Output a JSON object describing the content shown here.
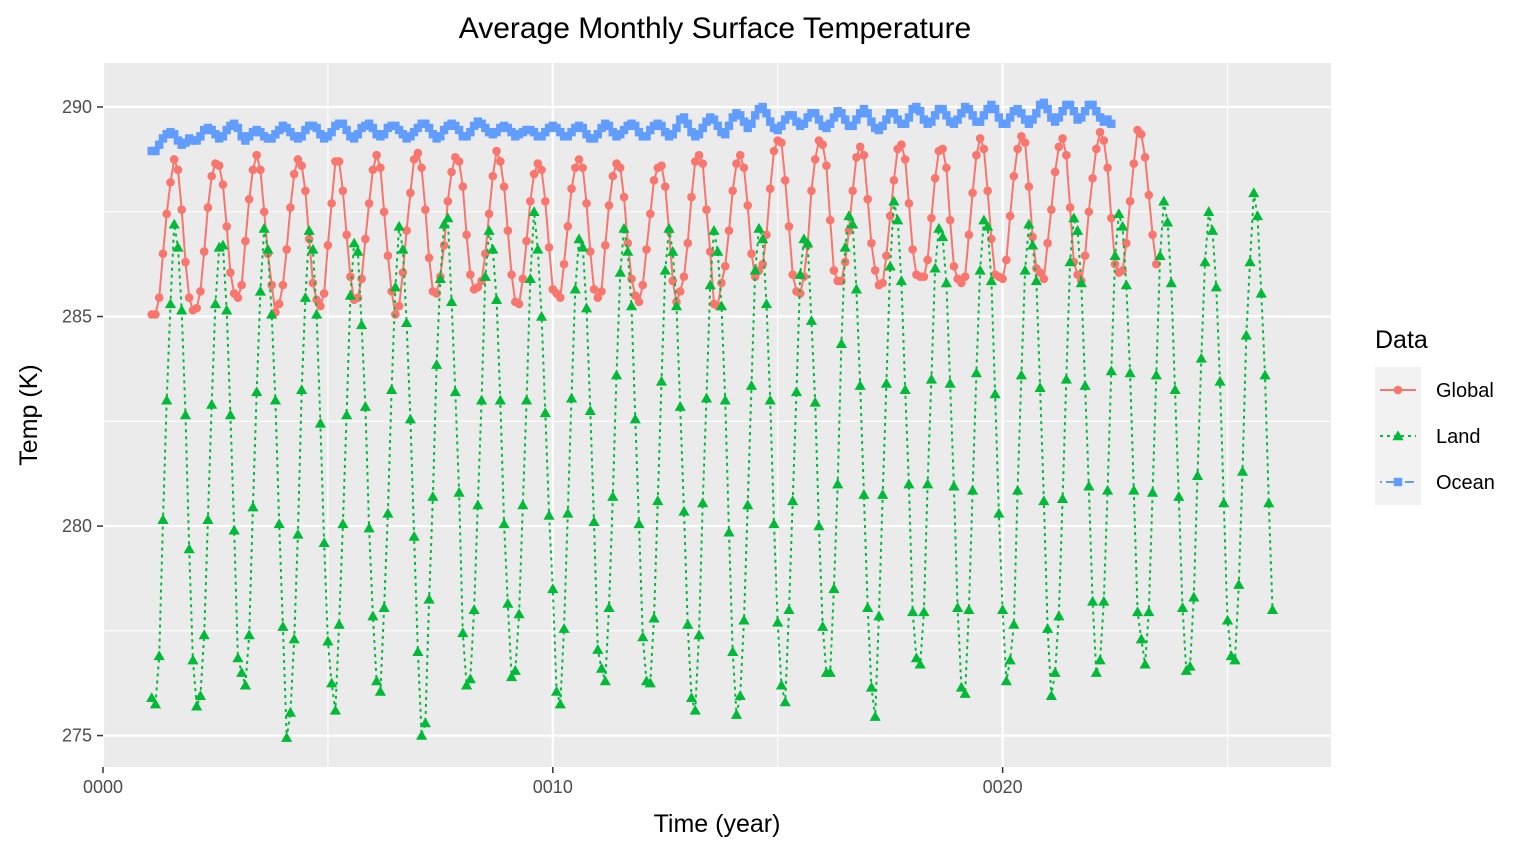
{
  "chart_data": {
    "type": "line",
    "title": "Average Monthly Surface Temperature",
    "xlabel": "Time (year)",
    "ylabel": "Temp (K)",
    "xlim": [
      0,
      27.3
    ],
    "ylim": [
      274.25,
      291.05
    ],
    "x_ticks": [
      {
        "value": 0,
        "label": "0000"
      },
      {
        "value": 10,
        "label": "0010"
      },
      {
        "value": 20,
        "label": "0020"
      }
    ],
    "y_ticks": [
      {
        "value": 275,
        "label": "275"
      },
      {
        "value": 280,
        "label": "280"
      },
      {
        "value": 285,
        "label": "285"
      },
      {
        "value": 290,
        "label": "290"
      }
    ],
    "grid": true,
    "legend": {
      "title": "Data",
      "placement": "right"
    },
    "months_per_year": 12,
    "x_start": 1.083,
    "series": [
      {
        "name": "Global",
        "color": "#f8766d",
        "marker": "circle",
        "line": "solid",
        "values": [
          285.05,
          285.05,
          285.45,
          286.5,
          287.45,
          288.2,
          288.75,
          288.5,
          287.55,
          286.3,
          285.45,
          285.15,
          285.2,
          285.6,
          286.55,
          287.6,
          288.35,
          288.65,
          288.6,
          288.15,
          287.15,
          286.05,
          285.55,
          285.45,
          285.75,
          286.8,
          287.8,
          288.5,
          288.85,
          288.5,
          287.5,
          286.5,
          285.75,
          285.1,
          285.3,
          285.75,
          286.6,
          287.6,
          288.4,
          288.75,
          288.6,
          288.0,
          286.85,
          285.8,
          285.4,
          285.25,
          285.55,
          286.7,
          287.7,
          288.7,
          288.7,
          288.0,
          286.95,
          285.95,
          285.4,
          285.45,
          285.9,
          286.85,
          287.7,
          288.5,
          288.85,
          288.55,
          287.5,
          286.45,
          285.6,
          285.05,
          285.25,
          286.05,
          287.05,
          287.95,
          288.75,
          288.9,
          288.55,
          287.55,
          286.4,
          285.6,
          285.55,
          285.95,
          286.7,
          287.75,
          288.45,
          288.8,
          288.7,
          288.1,
          286.95,
          286.0,
          285.65,
          285.7,
          285.85,
          286.5,
          287.45,
          288.35,
          288.95,
          288.7,
          288.1,
          287.05,
          286.0,
          285.35,
          285.3,
          285.9,
          286.8,
          287.75,
          288.4,
          288.65,
          288.5,
          287.75,
          286.65,
          285.65,
          285.55,
          285.45,
          286.25,
          287.15,
          288.05,
          288.55,
          288.75,
          288.55,
          287.7,
          286.55,
          285.65,
          285.45,
          285.6,
          286.7,
          287.65,
          288.35,
          288.65,
          288.55,
          287.85,
          286.75,
          285.9,
          285.5,
          285.35,
          285.75,
          286.6,
          287.45,
          288.25,
          288.55,
          288.6,
          288.1,
          287.05,
          285.85,
          285.35,
          285.6,
          285.95,
          286.75,
          287.85,
          288.7,
          288.85,
          288.65,
          287.55,
          286.55,
          285.3,
          285.25,
          285.8,
          286.2,
          287.05,
          288.0,
          288.65,
          288.85,
          288.55,
          287.65,
          286.5,
          285.95,
          286.1,
          286.25,
          286.95,
          288.05,
          288.95,
          289.2,
          289.15,
          288.25,
          287.15,
          286.0,
          285.6,
          285.55,
          285.95,
          286.7,
          288.0,
          288.75,
          289.2,
          289.1,
          288.6,
          287.3,
          286.1,
          285.85,
          285.85,
          286.3,
          287.05,
          288.0,
          288.8,
          289.05,
          288.85,
          287.8,
          286.75,
          286.1,
          285.75,
          285.8,
          286.45,
          287.4,
          288.25,
          289.0,
          289.1,
          288.75,
          287.7,
          286.6,
          286.0,
          285.95,
          285.95,
          286.35,
          287.35,
          288.3,
          288.95,
          289.0,
          288.55,
          287.3,
          286.2,
          285.9,
          285.8,
          285.95,
          286.95,
          287.95,
          288.85,
          289.25,
          289.0,
          288.0,
          286.85,
          286.0,
          285.95,
          285.9,
          286.35,
          287.4,
          288.35,
          289.0,
          289.3,
          289.15,
          288.1,
          286.9,
          286.15,
          286.05,
          285.9,
          286.75,
          287.55,
          288.45,
          289.05,
          289.25,
          288.85,
          287.6,
          286.3,
          286.0,
          285.85,
          286.45,
          287.5,
          288.3,
          289.0,
          289.4,
          289.2,
          288.55,
          287.35,
          286.25,
          286.05,
          286.1,
          286.75,
          287.75,
          288.65,
          289.45,
          289.35,
          288.8,
          287.9,
          286.95,
          286.25
        ]
      },
      {
        "name": "Land",
        "color": "#00ba38",
        "marker": "triangle",
        "line": "dotted",
        "values": [
          275.9,
          275.75,
          276.9,
          280.15,
          283.0,
          285.3,
          287.2,
          286.65,
          285.15,
          282.65,
          279.45,
          276.8,
          275.7,
          275.95,
          277.4,
          280.15,
          282.9,
          285.3,
          286.65,
          286.7,
          285.15,
          282.65,
          279.9,
          276.85,
          276.5,
          276.2,
          277.4,
          280.45,
          283.2,
          285.6,
          287.1,
          286.6,
          285.05,
          283.0,
          280.05,
          277.6,
          274.95,
          275.55,
          277.3,
          279.8,
          283.25,
          285.45,
          287.05,
          286.6,
          285.05,
          282.45,
          279.6,
          277.25,
          276.25,
          275.6,
          277.65,
          280.05,
          282.65,
          285.5,
          286.75,
          286.55,
          284.8,
          282.85,
          279.95,
          277.85,
          276.3,
          276.05,
          278.05,
          280.3,
          283.25,
          285.7,
          287.15,
          286.6,
          284.85,
          282.55,
          279.75,
          277.0,
          275.0,
          275.3,
          278.25,
          280.7,
          283.85,
          285.9,
          287.2,
          287.35,
          285.35,
          283.2,
          280.8,
          277.45,
          276.2,
          276.35,
          278.0,
          280.5,
          283.0,
          285.95,
          287.05,
          286.6,
          285.4,
          283.0,
          280.05,
          278.15,
          276.4,
          276.55,
          277.9,
          280.5,
          283.0,
          285.9,
          287.5,
          286.6,
          285.0,
          282.7,
          280.25,
          278.5,
          276.05,
          275.75,
          277.55,
          280.3,
          283.05,
          285.65,
          286.85,
          286.65,
          285.2,
          282.75,
          280.1,
          277.05,
          276.6,
          276.3,
          278.05,
          280.7,
          283.6,
          286.05,
          287.1,
          286.55,
          285.25,
          282.55,
          280.05,
          277.35,
          276.3,
          276.25,
          277.8,
          280.6,
          283.45,
          286.1,
          287.1,
          286.55,
          285.25,
          282.85,
          280.35,
          277.65,
          275.9,
          275.6,
          277.4,
          280.55,
          283.05,
          285.75,
          287.05,
          286.55,
          285.25,
          283.0,
          279.85,
          277.0,
          275.5,
          275.95,
          277.75,
          280.5,
          283.35,
          286.1,
          287.1,
          286.85,
          285.3,
          283.0,
          280.05,
          277.7,
          276.2,
          275.8,
          278.0,
          280.6,
          283.2,
          286.0,
          286.85,
          286.75,
          284.9,
          282.95,
          280.0,
          277.6,
          276.5,
          276.5,
          278.5,
          281.0,
          284.35,
          286.65,
          287.4,
          287.2,
          285.65,
          283.35,
          280.75,
          278.05,
          276.15,
          275.45,
          277.85,
          280.75,
          283.4,
          286.2,
          287.75,
          287.3,
          285.85,
          283.25,
          281.0,
          277.95,
          276.85,
          276.7,
          277.95,
          281.0,
          283.5,
          286.15,
          287.1,
          286.9,
          285.8,
          283.4,
          280.95,
          278.05,
          276.15,
          276.0,
          278.0,
          280.85,
          283.65,
          286.1,
          287.3,
          287.15,
          285.85,
          283.15,
          280.3,
          278.0,
          276.3,
          276.8,
          277.65,
          280.85,
          283.6,
          286.1,
          287.2,
          286.7,
          285.85,
          283.3,
          280.6,
          277.55,
          275.95,
          276.5,
          277.85,
          280.65,
          283.5,
          286.3,
          287.35,
          287.05,
          285.8,
          283.35,
          280.95,
          278.2,
          276.5,
          276.8,
          278.2,
          280.85,
          283.7,
          286.45,
          287.45,
          287.15,
          285.75,
          283.65,
          280.85,
          277.95,
          277.3,
          276.7,
          277.95,
          280.8,
          283.6,
          286.45,
          287.75,
          287.25,
          285.8,
          283.25,
          280.7,
          278.05,
          276.55,
          276.65,
          278.3,
          281.2,
          284.0,
          286.3,
          287.5,
          287.05,
          285.7,
          283.45,
          280.55,
          277.75,
          276.9,
          276.8,
          278.6,
          281.3,
          284.55,
          286.3,
          287.95,
          287.4,
          285.55,
          283.6,
          280.55,
          278.0
        ]
      },
      {
        "name": "Ocean",
        "color": "#619cff",
        "marker": "square",
        "line": "dotdash",
        "values": [
          288.95,
          288.95,
          289.1,
          289.25,
          289.35,
          289.4,
          289.35,
          289.2,
          289.1,
          289.15,
          289.25,
          289.2,
          289.2,
          289.3,
          289.45,
          289.5,
          289.45,
          289.35,
          289.25,
          289.3,
          289.45,
          289.55,
          289.6,
          289.5,
          289.3,
          289.2,
          289.3,
          289.4,
          289.45,
          289.4,
          289.3,
          289.25,
          289.25,
          289.35,
          289.45,
          289.55,
          289.5,
          289.4,
          289.3,
          289.25,
          289.3,
          289.45,
          289.55,
          289.55,
          289.5,
          289.35,
          289.25,
          289.3,
          289.4,
          289.55,
          289.6,
          289.6,
          289.45,
          289.3,
          289.25,
          289.35,
          289.5,
          289.55,
          289.6,
          289.5,
          289.35,
          289.3,
          289.35,
          289.5,
          289.55,
          289.55,
          289.45,
          289.35,
          289.25,
          289.3,
          289.4,
          289.5,
          289.6,
          289.6,
          289.5,
          289.35,
          289.25,
          289.3,
          289.45,
          289.55,
          289.6,
          289.55,
          289.45,
          289.3,
          289.3,
          289.4,
          289.55,
          289.65,
          289.6,
          289.5,
          289.4,
          289.35,
          289.4,
          289.5,
          289.55,
          289.5,
          289.4,
          289.3,
          289.35,
          289.4,
          289.45,
          289.45,
          289.4,
          289.3,
          289.3,
          289.4,
          289.5,
          289.55,
          289.5,
          289.4,
          289.3,
          289.3,
          289.4,
          289.5,
          289.55,
          289.5,
          289.35,
          289.25,
          289.25,
          289.35,
          289.5,
          289.6,
          289.55,
          289.4,
          289.3,
          289.35,
          289.45,
          289.55,
          289.6,
          289.55,
          289.4,
          289.3,
          289.3,
          289.45,
          289.55,
          289.6,
          289.55,
          289.4,
          289.3,
          289.35,
          289.5,
          289.7,
          289.75,
          289.6,
          289.4,
          289.3,
          289.35,
          289.5,
          289.65,
          289.75,
          289.7,
          289.55,
          289.4,
          289.35,
          289.55,
          289.75,
          289.85,
          289.8,
          289.65,
          289.5,
          289.6,
          289.8,
          289.95,
          290.0,
          289.85,
          289.65,
          289.5,
          289.45,
          289.55,
          289.7,
          289.8,
          289.8,
          289.65,
          289.55,
          289.6,
          289.75,
          289.85,
          289.85,
          289.7,
          289.55,
          289.5,
          289.6,
          289.75,
          289.9,
          289.85,
          289.7,
          289.55,
          289.55,
          289.7,
          289.85,
          289.95,
          289.85,
          289.65,
          289.5,
          289.45,
          289.55,
          289.7,
          289.85,
          289.85,
          289.7,
          289.6,
          289.6,
          289.75,
          289.95,
          290.0,
          289.9,
          289.7,
          289.6,
          289.65,
          289.8,
          289.95,
          289.95,
          289.8,
          289.65,
          289.6,
          289.7,
          289.85,
          290.0,
          289.95,
          289.8,
          289.65,
          289.65,
          289.8,
          289.95,
          290.05,
          289.95,
          289.75,
          289.6,
          289.6,
          289.75,
          289.9,
          289.95,
          289.85,
          289.7,
          289.6,
          289.7,
          289.85,
          290.05,
          290.1,
          289.95,
          289.75,
          289.65,
          289.75,
          289.9,
          290.05,
          290.05,
          289.9,
          289.7,
          289.75,
          289.9,
          290.05,
          290.05,
          289.9,
          289.75,
          289.65,
          289.7,
          289.6
        ]
      }
    ]
  }
}
